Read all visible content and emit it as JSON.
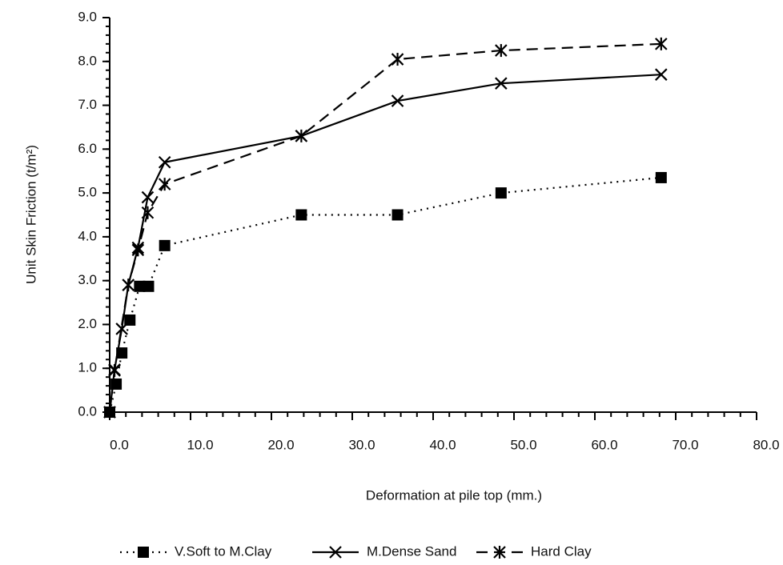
{
  "chart_data": {
    "type": "line",
    "x_label": "Deformation at pile top (mm.)",
    "y_label": "Unit Skin Friction (t/m²)",
    "xlim": [
      0,
      80
    ],
    "ylim": [
      0,
      9
    ],
    "xticks": [
      {
        "value": 0,
        "label": "0.0"
      },
      {
        "value": 10,
        "label": "10.0"
      },
      {
        "value": 20,
        "label": "20.0"
      },
      {
        "value": 30,
        "label": "30.0"
      },
      {
        "value": 40,
        "label": "40.0"
      },
      {
        "value": 50,
        "label": "50.0"
      },
      {
        "value": 60,
        "label": "60.0"
      },
      {
        "value": 70,
        "label": "70.0"
      },
      {
        "value": 80,
        "label": "80.0"
      }
    ],
    "yticks": [
      {
        "value": 0,
        "label": "0.0"
      },
      {
        "value": 1,
        "label": "1.0"
      },
      {
        "value": 2,
        "label": "2.0"
      },
      {
        "value": 3,
        "label": "3.0"
      },
      {
        "value": 4,
        "label": "4.0"
      },
      {
        "value": 5,
        "label": "5.0"
      },
      {
        "value": 6,
        "label": "6.0"
      },
      {
        "value": 7,
        "label": "7.0"
      },
      {
        "value": 8,
        "label": "8.0"
      },
      {
        "value": 9,
        "label": "9.0"
      }
    ],
    "legend": "bottom",
    "series": [
      {
        "name": "V.Soft to M.Clay",
        "color": "#000000",
        "marker": "square",
        "dash": "dotted",
        "x": [
          0,
          0.8,
          1.5,
          2.5,
          3.7,
          4.8,
          6.8,
          23.7,
          35.6,
          48.4,
          68.2
        ],
        "values": [
          0,
          0.64,
          1.35,
          2.1,
          2.87,
          2.87,
          3.8,
          4.5,
          4.5,
          5.0,
          5.35
        ]
      },
      {
        "name": "M.Dense Sand",
        "color": "#000000",
        "marker": "x",
        "dash": "solid",
        "x": [
          0,
          0.6,
          1.5,
          2.3,
          3.5,
          4.7,
          6.8,
          23.7,
          35.6,
          48.4,
          68.2
        ],
        "values": [
          0,
          0.97,
          1.9,
          2.9,
          3.75,
          4.9,
          5.7,
          6.3,
          7.1,
          7.5,
          7.7
        ]
      },
      {
        "name": "Hard Clay",
        "color": "#000000",
        "marker": "asterisk",
        "dash": "dashed",
        "x": [
          0,
          0.6,
          2.3,
          3.5,
          4.7,
          6.8,
          23.7,
          35.6,
          48.4,
          68.2
        ],
        "values": [
          0,
          0.95,
          2.9,
          3.7,
          4.55,
          5.2,
          6.3,
          8.05,
          8.25,
          8.4
        ]
      }
    ]
  }
}
